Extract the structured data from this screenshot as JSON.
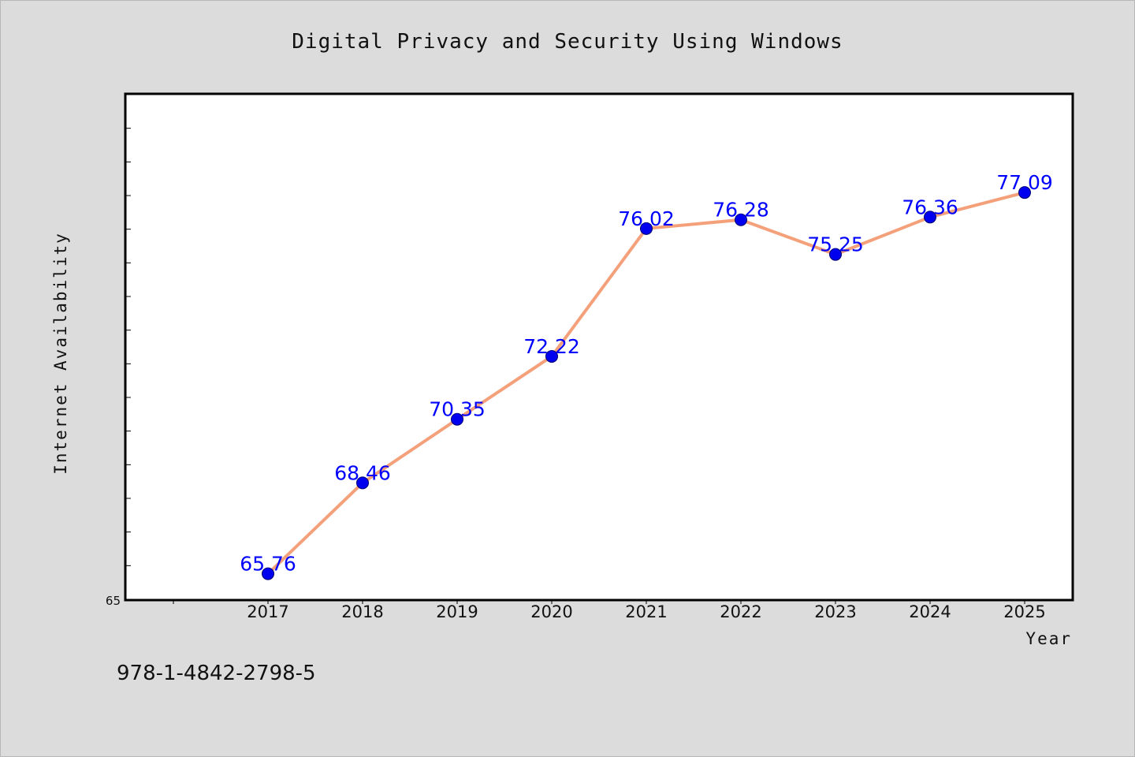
{
  "chart_data": {
    "type": "line",
    "title": "Digital Privacy and Security Using Windows",
    "xlabel": "Year",
    "ylabel": "Internet Availability",
    "categories": [
      "2017",
      "2018",
      "2019",
      "2020",
      "2021",
      "2022",
      "2023",
      "2024",
      "2025"
    ],
    "series": [
      {
        "values": [
          65.76,
          68.46,
          70.35,
          72.22,
          76.02,
          76.28,
          75.25,
          76.36,
          77.09
        ],
        "data_labels": [
          "65.76",
          "68.46",
          "70.35",
          "72.22",
          "76.02",
          "76.28",
          "75.25",
          "76.36",
          "77.09"
        ],
        "line_color": "#f4a07a",
        "marker_color": "#0000ee"
      }
    ],
    "ylim": [
      65,
      80
    ],
    "ymin_label": "65",
    "grid": false,
    "legend": "none"
  },
  "footer": {
    "isbn": "978-1-4842-2798-5"
  }
}
